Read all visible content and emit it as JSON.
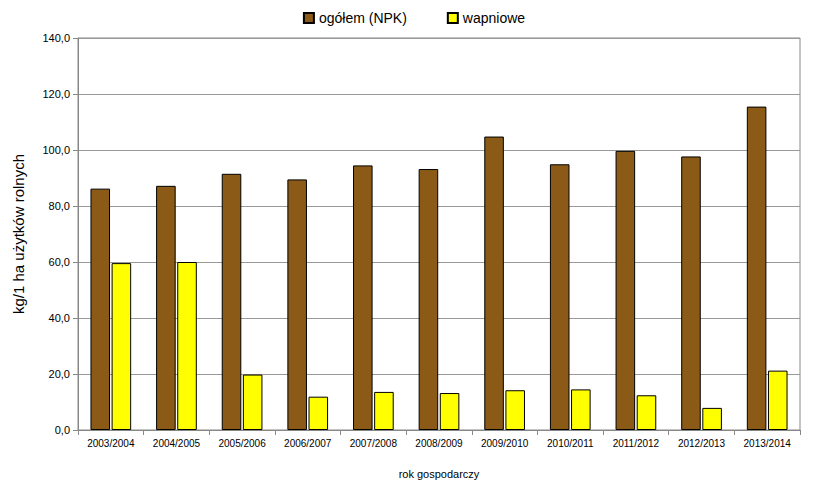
{
  "chart_data": {
    "type": "bar",
    "categories": [
      "2003/2004",
      "2004/2005",
      "2005/2006",
      "2006/2007",
      "2007/2008",
      "2008/2009",
      "2009/2010",
      "2010/2011",
      "2011/2012",
      "2012/2013",
      "2013/2014"
    ],
    "series": [
      {
        "name": "ogółem (NPK)",
        "color": "#8B5A17",
        "values": [
          86.2,
          87.2,
          91.5,
          89.5,
          94.5,
          93.2,
          104.8,
          94.9,
          99.7,
          97.7,
          115.5
        ]
      },
      {
        "name": "wapniowe",
        "color": "#FFFF00",
        "values": [
          59.6,
          60.0,
          19.8,
          11.9,
          13.6,
          13.2,
          14.2,
          14.5,
          12.4,
          7.9,
          21.2
        ]
      }
    ],
    "x_label": "rok gospodarczy",
    "y_label": "kg/1 ha użytków rolnych",
    "ylim": [
      0,
      140
    ],
    "yticks": [
      {
        "value": 0,
        "label": "0,0"
      },
      {
        "value": 20,
        "label": "20,0"
      },
      {
        "value": 40,
        "label": "40,0"
      },
      {
        "value": 60,
        "label": "60,0"
      },
      {
        "value": 80,
        "label": "80,0"
      },
      {
        "value": 100,
        "label": "100,0"
      },
      {
        "value": 120,
        "label": "120,0"
      },
      {
        "value": 140,
        "label": "140,0"
      }
    ],
    "grid": true,
    "legend": "top"
  }
}
